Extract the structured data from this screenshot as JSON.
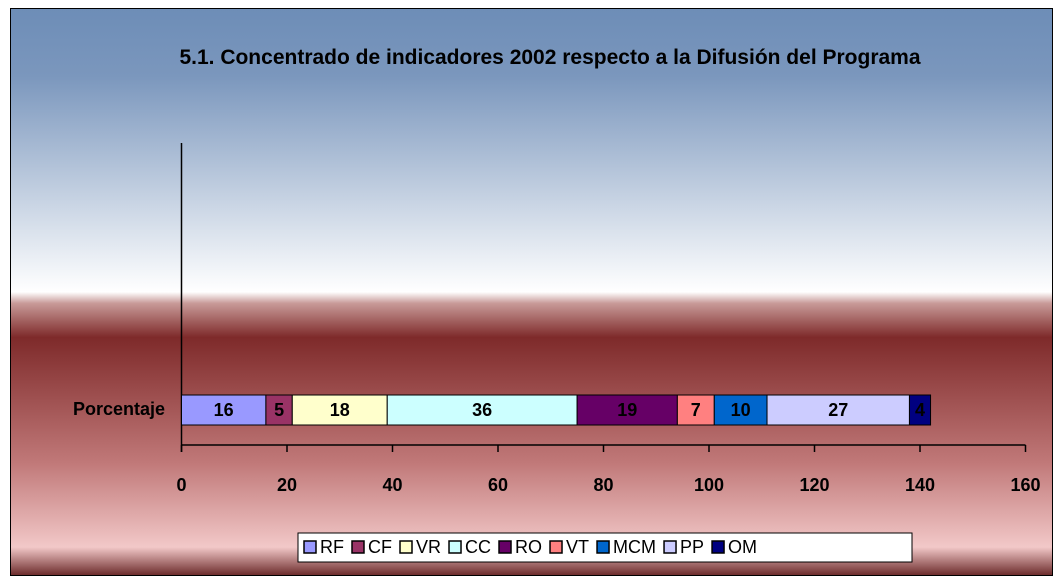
{
  "chart_data": {
    "type": "stacked_bar_horizontal",
    "title": "5.1. Concentrado de indicadores 2002 respecto a la Difusión del Programa",
    "categories": [
      "Porcentaje"
    ],
    "series": [
      {
        "name": "RF",
        "color": "#9999ff",
        "values": [
          16
        ]
      },
      {
        "name": "CF",
        "color": "#993366",
        "values": [
          5
        ]
      },
      {
        "name": "VR",
        "color": "#ffffcc",
        "values": [
          18
        ]
      },
      {
        "name": "CC",
        "color": "#ccffff",
        "values": [
          36
        ]
      },
      {
        "name": "RO",
        "color": "#660066",
        "values": [
          19
        ]
      },
      {
        "name": "VT",
        "color": "#ff8080",
        "values": [
          7
        ]
      },
      {
        "name": "MCM",
        "color": "#0066cc",
        "values": [
          10
        ]
      },
      {
        "name": "PP",
        "color": "#ccccff",
        "values": [
          27
        ]
      },
      {
        "name": "OM",
        "color": "#000080",
        "values": [
          4
        ]
      }
    ],
    "xlim": [
      0,
      160
    ],
    "xticks": [
      0,
      20,
      40,
      60,
      80,
      100,
      120,
      140,
      160
    ],
    "legend": "bottom"
  }
}
